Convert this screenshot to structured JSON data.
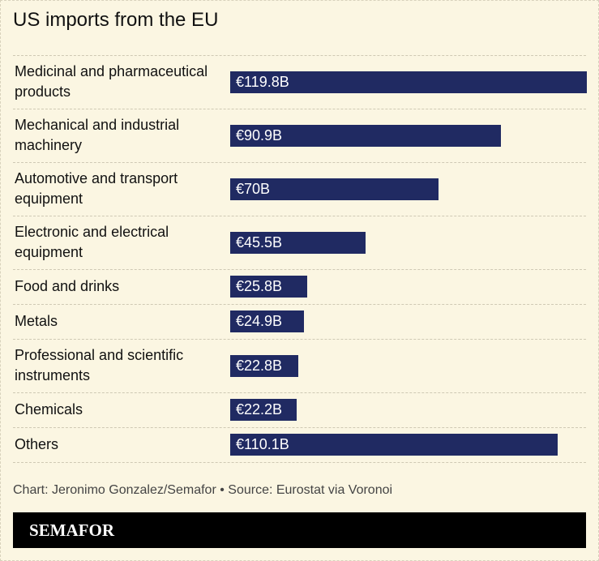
{
  "chart_data": {
    "type": "bar",
    "orientation": "horizontal",
    "title": "US imports from the EU",
    "categories": [
      "Medicinal and pharmaceutical products",
      "Mechanical and industrial machinery",
      "Automotive and transport equipment",
      "Electronic and electrical equipment",
      "Food and drinks",
      "Metals",
      "Professional and scientific instruments",
      "Chemicals",
      "Others"
    ],
    "values": [
      119.8,
      90.9,
      70,
      45.5,
      25.8,
      24.9,
      22.8,
      22.2,
      110.1
    ],
    "value_labels": [
      "€119.8B",
      "€90.9B",
      "€70B",
      "€45.5B",
      "€25.8B",
      "€24.9B",
      "€22.8B",
      "€22.2B",
      "€110.1B"
    ],
    "color": "#202a62",
    "source": "Chart: Jeronimo Gonzalez/Semafor • Source: Eurostat via Voronoi",
    "brand": "SEMAFOR"
  }
}
